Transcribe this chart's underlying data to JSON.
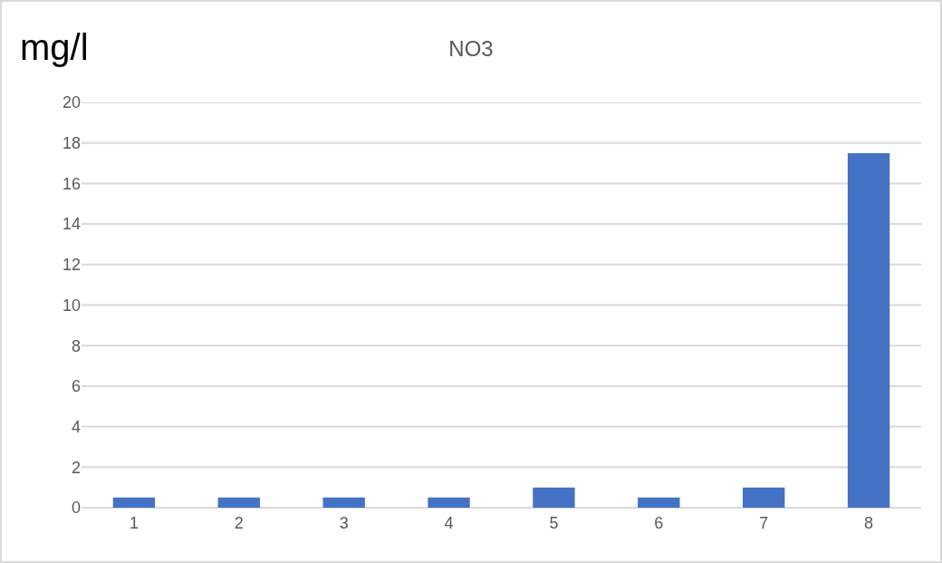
{
  "chart_data": {
    "type": "bar",
    "title": "NO3",
    "ylabel": "mg/l",
    "categories": [
      "1",
      "2",
      "3",
      "4",
      "5",
      "6",
      "7",
      "8"
    ],
    "values": [
      0.5,
      0.5,
      0.5,
      0.5,
      1,
      0.5,
      1,
      17.5
    ],
    "color": "#4472c4",
    "ylim": [
      0,
      20
    ],
    "yticks": [
      0,
      2,
      4,
      6,
      8,
      10,
      12,
      14,
      16,
      18,
      20
    ],
    "grid": "y"
  }
}
